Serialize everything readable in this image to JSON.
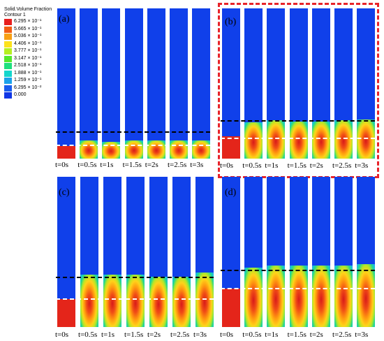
{
  "legend": {
    "title_line1": "Solid.Volume Fraction",
    "title_line2": "Contour 1",
    "entries": [
      {
        "label": "6.295 × 10⁻¹",
        "color": "#e81e1e"
      },
      {
        "label": "5.665 × 10⁻¹",
        "color": "#f25d14"
      },
      {
        "label": "5.036 × 10⁻¹",
        "color": "#f8a014"
      },
      {
        "label": "4.406 × 10⁻¹",
        "color": "#fde21c"
      },
      {
        "label": "3.777 × 10⁻¹",
        "color": "#b6ef20"
      },
      {
        "label": "3.147 × 10⁻¹",
        "color": "#54e82c"
      },
      {
        "label": "2.518 × 10⁻¹",
        "color": "#1ee07e"
      },
      {
        "label": "1.888 × 10⁻¹",
        "color": "#14d6cc"
      },
      {
        "label": "1.259 × 10⁻¹",
        "color": "#1ca2ea"
      },
      {
        "label": "6.295 × 10⁻²",
        "color": "#1a5ced"
      },
      {
        "label": "0.000",
        "color": "#1036e6"
      }
    ]
  },
  "time_labels": [
    "t=0s",
    "t=0.5s",
    "t=1s",
    "t=1.5s",
    "t=2s",
    "t=2.5s",
    "t=3s"
  ],
  "panels": [
    {
      "letter": "(a)"
    },
    {
      "letter": "(b)",
      "highlighted": true
    },
    {
      "letter": "(c)"
    },
    {
      "letter": "(d)"
    }
  ],
  "colors": {
    "column_background": "#1040ea",
    "highlight_border": "#e8232a"
  }
}
